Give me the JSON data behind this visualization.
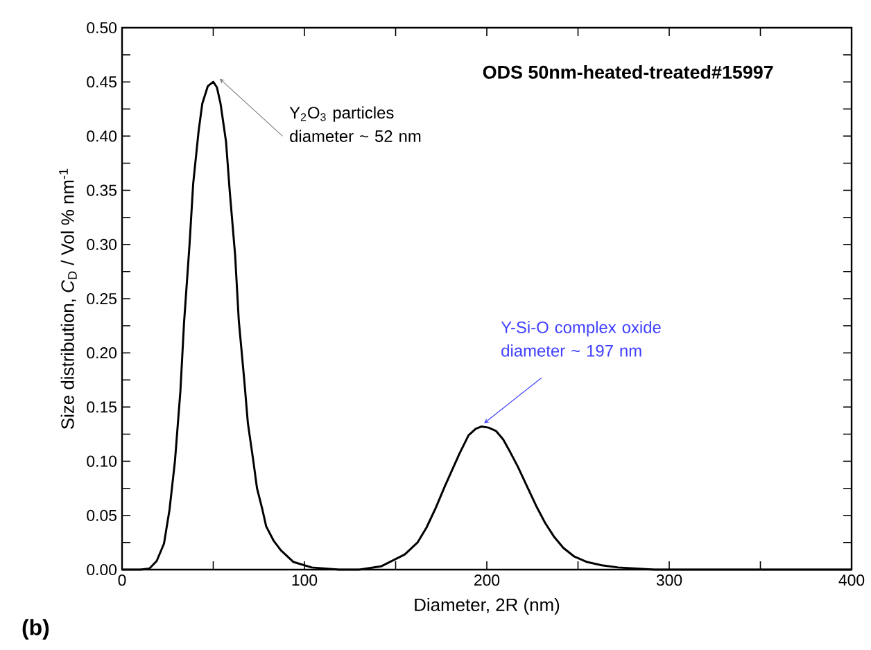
{
  "chart_data": {
    "type": "line",
    "title": "ODS 50nm-heated-treated#15997",
    "xlabel": "Diameter, 2R (nm)",
    "ylabel": "Size distribution, *C*$_{D}$ / Vol % nm$^{-1}$",
    "xlim": [
      0,
      400
    ],
    "ylim": [
      0,
      0.5
    ],
    "xticks": [
      0,
      {
        "value": 50,
        "label": null
      },
      100,
      {
        "value": 150,
        "label": null
      },
      200,
      {
        "value": 250,
        "label": null
      },
      300,
      {
        "value": 350,
        "label": null
      },
      400
    ],
    "yticks": [
      {
        "value": 0,
        "label": "0.00"
      },
      {
        "value": 0.025,
        "label": null
      },
      {
        "value": 0.05,
        "label": "0.05"
      },
      {
        "value": 0.075,
        "label": null
      },
      {
        "value": 0.1,
        "label": "0.10"
      },
      {
        "value": 0.125,
        "label": null
      },
      {
        "value": 0.15,
        "label": "0.15"
      },
      {
        "value": 0.175,
        "label": null
      },
      {
        "value": 0.2,
        "label": "0.20"
      },
      {
        "value": 0.225,
        "label": null
      },
      {
        "value": 0.25,
        "label": "0.25"
      },
      {
        "value": 0.275,
        "label": null
      },
      {
        "value": 0.3,
        "label": "0.30"
      },
      {
        "value": 0.325,
        "label": null
      },
      {
        "value": 0.35,
        "label": "0.35"
      },
      {
        "value": 0.375,
        "label": null
      },
      {
        "value": 0.4,
        "label": "0.40"
      },
      {
        "value": 0.425,
        "label": null
      },
      {
        "value": 0.45,
        "label": "0.45"
      },
      {
        "value": 0.475,
        "label": null
      },
      {
        "value": 0.5,
        "label": "0.50"
      }
    ],
    "grid": false,
    "marker": "none",
    "line_style": "solid",
    "series": [
      {
        "color": "#000000",
        "x": [
          0,
          10,
          15,
          19,
          23,
          26,
          29,
          32,
          34,
          37,
          39,
          42,
          44,
          47,
          50,
          52,
          54,
          57,
          59,
          62,
          64,
          67,
          69,
          72,
          74,
          77,
          79,
          83,
          87,
          94,
          104,
          119,
          130,
          142,
          155,
          162,
          167,
          172,
          177,
          181,
          185,
          190,
          194,
          197,
          201,
          205,
          209,
          212,
          217,
          222,
          227,
          232,
          237,
          242,
          248,
          255,
          263,
          272,
          282,
          292,
          310,
          400
        ],
        "values": [
          0,
          0,
          0.001,
          0.008,
          0.024,
          0.055,
          0.1,
          0.165,
          0.228,
          0.3,
          0.356,
          0.405,
          0.43,
          0.446,
          0.45,
          0.445,
          0.43,
          0.395,
          0.35,
          0.29,
          0.23,
          0.175,
          0.135,
          0.1,
          0.075,
          0.055,
          0.04,
          0.027,
          0.018,
          0.007,
          0.002,
          0,
          0,
          0.003,
          0.014,
          0.025,
          0.039,
          0.057,
          0.077,
          0.092,
          0.107,
          0.124,
          0.13,
          0.132,
          0.131,
          0.128,
          0.12,
          0.111,
          0.095,
          0.077,
          0.059,
          0.043,
          0.03,
          0.02,
          0.012,
          0.007,
          0.004,
          0.002,
          0.001,
          0,
          0,
          0
        ]
      }
    ],
    "annotations": [
      {
        "text": "Y$_{2}$O$_{3}$ particles diameter ~ 52 nm",
        "x": 52,
        "y": 0.45
      },
      {
        "text": "Y-Si-O complex oxide diameter ~ 197 nm",
        "x": 197,
        "y": 0.132
      },
      "(b)"
    ]
  }
}
